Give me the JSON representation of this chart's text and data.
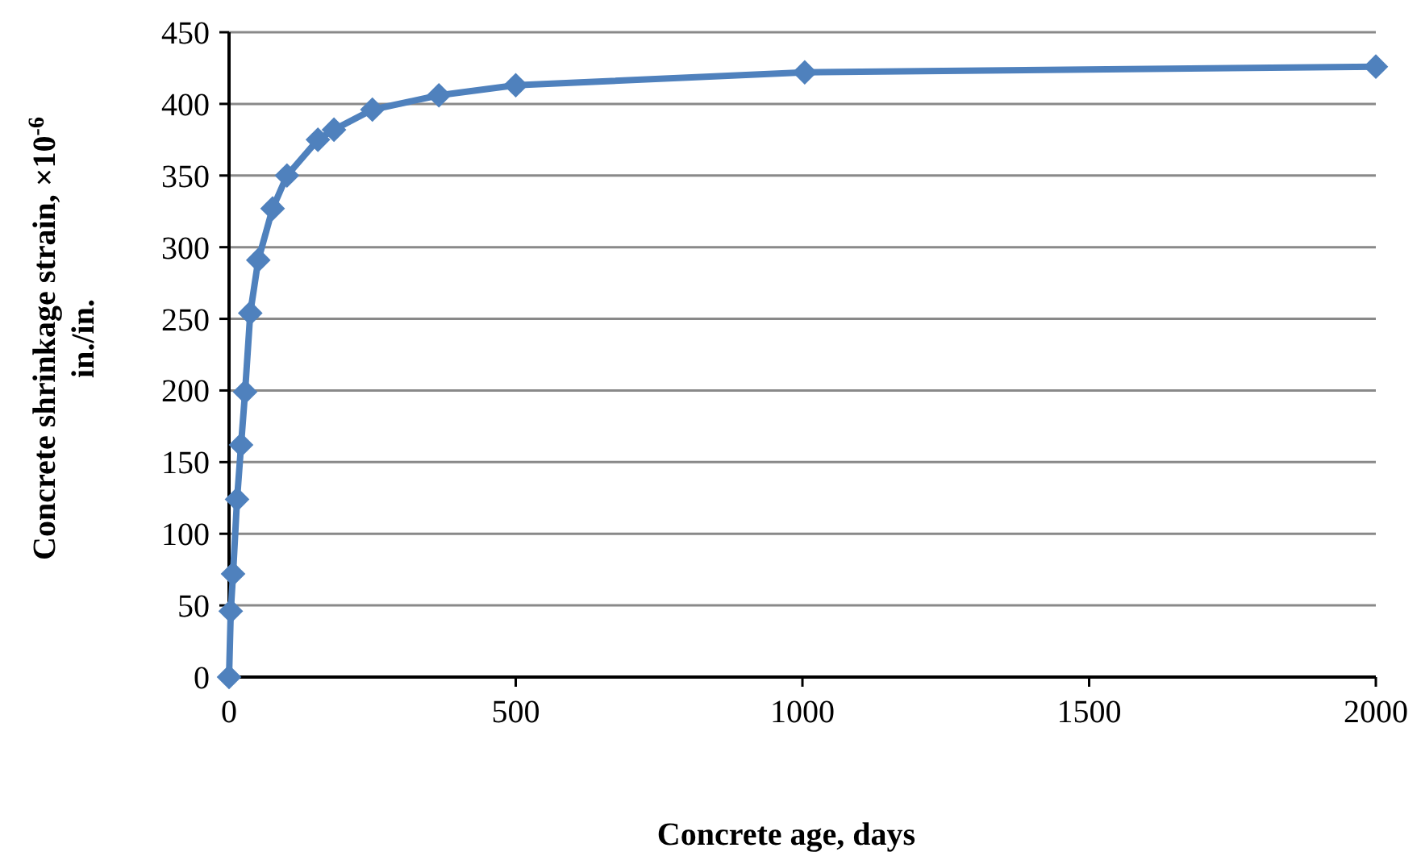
{
  "chart_data": {
    "type": "line",
    "xlabel": "Concrete age, days",
    "ylabel": "Concrete shrinkage strain, ×10$^{-6}$\nin./in.",
    "x": [
      0,
      3,
      7,
      14,
      21,
      28,
      37,
      51,
      76,
      101,
      155,
      183,
      250,
      366,
      500,
      1004,
      2000
    ],
    "series": [
      {
        "color": "#4f81bd",
        "values": [
          0,
          46,
          72,
          124,
          162,
          199,
          254,
          291,
          327,
          350,
          375,
          382,
          396,
          406,
          413,
          422,
          426
        ]
      }
    ],
    "xlim": [
      0,
      2000
    ],
    "xticks": [
      0,
      500,
      1000,
      1500,
      2000
    ],
    "ylim": [
      0,
      450
    ],
    "yticks": [
      0,
      50,
      100,
      150,
      200,
      250,
      300,
      350,
      400,
      450
    ],
    "grid": "y",
    "marker": "diamond",
    "line_style": "solid"
  }
}
